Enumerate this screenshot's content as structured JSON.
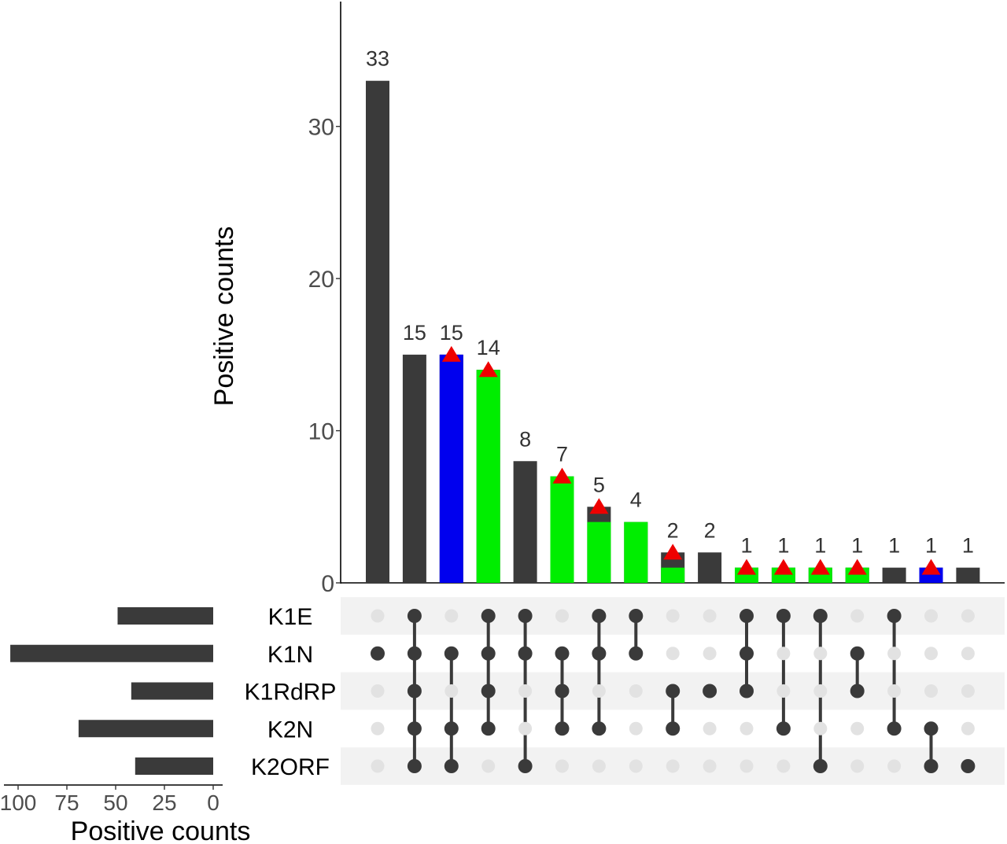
{
  "chart_data": {
    "type": "bar",
    "subtype": "upset",
    "intersection_axis": {
      "ylabel": "Positive counts",
      "ylim": [
        0,
        38
      ],
      "ticks": [
        0,
        10,
        20,
        30
      ]
    },
    "set_size_axis": {
      "xlabel": "Positive counts",
      "xlim": [
        105,
        0
      ],
      "ticks": [
        100,
        75,
        50,
        25,
        0
      ]
    },
    "sets": [
      "K1E",
      "K1N",
      "K1RdRP",
      "K2N",
      "K2ORF"
    ],
    "set_sizes": [
      49,
      104,
      42,
      69,
      40
    ],
    "intersections": [
      {
        "members": [
          1
        ],
        "value": 33,
        "label": "33",
        "fill": [],
        "marker": false
      },
      {
        "members": [
          0,
          1,
          2,
          3,
          4
        ],
        "value": 15,
        "label": "15",
        "fill": [],
        "marker": false
      },
      {
        "members": [
          1,
          3,
          4
        ],
        "value": 15,
        "label": "15",
        "fill": [
          {
            "color": "blue",
            "value": 15
          }
        ],
        "marker": true
      },
      {
        "members": [
          0,
          1,
          2,
          3
        ],
        "value": 14,
        "label": "14",
        "fill": [
          {
            "color": "green",
            "value": 14
          }
        ],
        "marker": true
      },
      {
        "members": [
          0,
          1,
          4
        ],
        "value": 8,
        "label": "8",
        "fill": [],
        "marker": false
      },
      {
        "members": [
          1,
          2,
          3
        ],
        "value": 7,
        "label": "7",
        "fill": [
          {
            "color": "green",
            "value": 7
          }
        ],
        "marker": true
      },
      {
        "members": [
          0,
          1,
          3
        ],
        "value": 5,
        "label": "5",
        "fill": [
          {
            "color": "green",
            "value": 4
          }
        ],
        "marker": true
      },
      {
        "members": [
          0,
          1
        ],
        "value": 4,
        "label": "4",
        "fill": [
          {
            "color": "green",
            "value": 4
          }
        ],
        "marker": false
      },
      {
        "members": [
          2,
          3
        ],
        "value": 2,
        "label": "2",
        "fill": [
          {
            "color": "green",
            "value": 1
          }
        ],
        "marker": true
      },
      {
        "members": [
          2
        ],
        "value": 2,
        "label": "2",
        "fill": [],
        "marker": false
      },
      {
        "members": [
          0,
          1,
          2
        ],
        "value": 1,
        "label": "1",
        "fill": [
          {
            "color": "green",
            "value": 1
          }
        ],
        "marker": true
      },
      {
        "members": [
          0,
          3
        ],
        "value": 1,
        "label": "1",
        "fill": [
          {
            "color": "green",
            "value": 1
          }
        ],
        "marker": true
      },
      {
        "members": [
          0,
          4
        ],
        "value": 1,
        "label": "1",
        "fill": [
          {
            "color": "green",
            "value": 1
          }
        ],
        "marker": true
      },
      {
        "members": [
          1,
          2
        ],
        "value": 1,
        "label": "1",
        "fill": [
          {
            "color": "green",
            "value": 1
          }
        ],
        "marker": true
      },
      {
        "members": [
          0,
          3
        ],
        "value": 1,
        "label": "1",
        "fill": [],
        "marker": false
      },
      {
        "members": [
          3,
          4
        ],
        "value": 1,
        "label": "1",
        "fill": [
          {
            "color": "blue",
            "value": 1
          }
        ],
        "marker": true
      },
      {
        "members": [
          4
        ],
        "value": 1,
        "label": "1",
        "fill": [],
        "marker": false
      }
    ],
    "colors": {
      "bar": "#3a3a3a",
      "green": "#00ee00",
      "blue": "#0000ee",
      "marker": "#ee0000",
      "dot_active": "#3a3a3a",
      "dot_inactive": "#e2e2e2",
      "stripe": "#f2f2f2",
      "tick_text": "#4d4d4d"
    },
    "grid": false
  }
}
